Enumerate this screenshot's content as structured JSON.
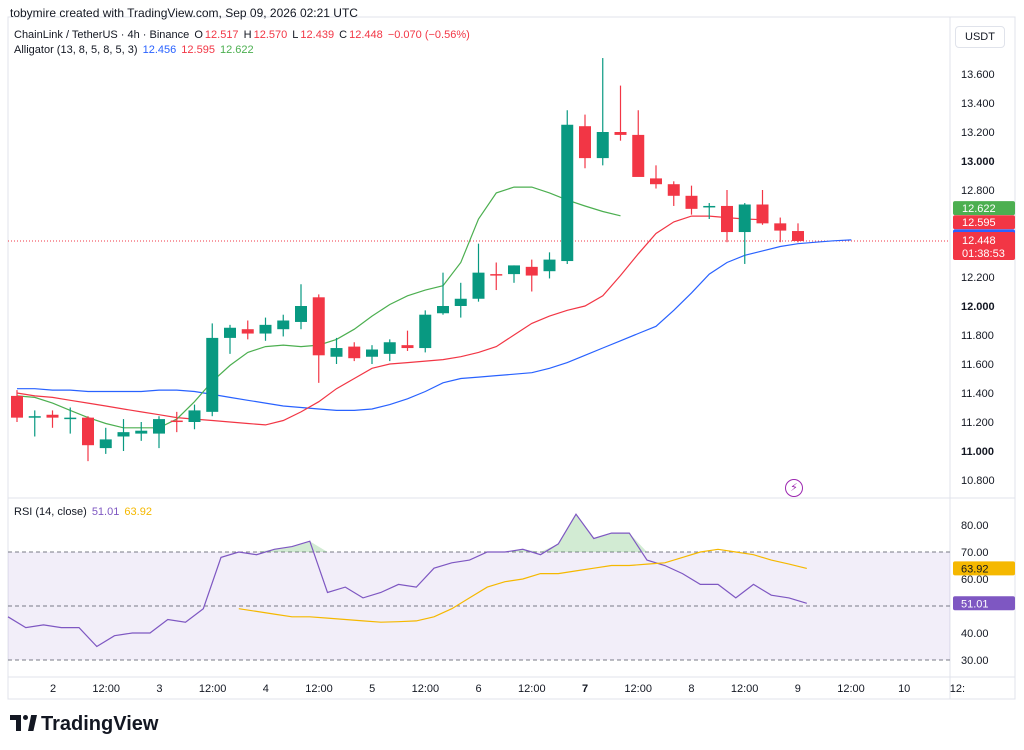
{
  "header": {
    "author_line": "tobymire created with TradingView.com, Sep 09, 2026 02:21 UTC",
    "symbol_line": "ChainLink / TetherUS · 4h · Binance",
    "ohlc": {
      "o_label": "O",
      "o": "12.517",
      "h_label": "H",
      "h": "12.570",
      "l_label": "L",
      "l": "12.439",
      "c_label": "C",
      "c": "12.448",
      "change": "−0.070 (−0.56%)"
    },
    "alligator": {
      "label": "Alligator (13, 8, 5, 8, 5, 3)",
      "jaw": "12.456",
      "teeth": "12.595",
      "lips": "12.622"
    },
    "currency": "USDT"
  },
  "rsi_legend": {
    "label": "RSI (14, close)",
    "rsi": "51.01",
    "ma": "63.92"
  },
  "price_axis": {
    "ticks": [
      "13.600",
      "13.400",
      "13.200",
      "13.000",
      "12.800",
      "12.400",
      "12.200",
      "12.000",
      "11.800",
      "11.600",
      "11.400",
      "11.200",
      "11.000",
      "10.800"
    ],
    "bold_ticks": [
      "13.000",
      "12.000",
      "11.000"
    ],
    "badges": {
      "lips": "12.622",
      "teeth": "12.595",
      "jaw": "12.456",
      "price": "12.448",
      "countdown": "01:38:53"
    }
  },
  "rsi_axis": {
    "ticks": [
      "80.00",
      "70.00",
      "60.00",
      "50.00",
      "40.00",
      "30.00"
    ],
    "badges": {
      "ma": "63.92",
      "rsi": "51.01"
    }
  },
  "time_axis": {
    "labels": [
      "2",
      "12:00",
      "3",
      "12:00",
      "4",
      "12:00",
      "5",
      "12:00",
      "6",
      "12:00",
      "7",
      "12:00",
      "8",
      "12:00",
      "9",
      "12:00",
      "10",
      "12:"
    ],
    "bold_label": "7"
  },
  "colors": {
    "up": "#089981",
    "down": "#f23645",
    "jaw": "#2962ff",
    "teeth": "#f23645",
    "lips": "#4caf50",
    "rsi": "#7e57c2",
    "rsi_ma": "#f5b800"
  },
  "footer": {
    "brand": "TradingView"
  },
  "chart_data": [
    {
      "type": "candlestick",
      "title": "ChainLink / TetherUS · 4h · Binance",
      "ylim": [
        10.75,
        13.75
      ],
      "candles": [
        {
          "o": 11.38,
          "h": 11.42,
          "l": 11.2,
          "c": 11.23
        },
        {
          "o": 11.24,
          "h": 11.28,
          "l": 11.1,
          "c": 11.24
        },
        {
          "o": 11.25,
          "h": 11.28,
          "l": 11.16,
          "c": 11.23
        },
        {
          "o": 11.23,
          "h": 11.3,
          "l": 11.12,
          "c": 11.23
        },
        {
          "o": 11.23,
          "h": 11.24,
          "l": 10.93,
          "c": 11.04
        },
        {
          "o": 11.02,
          "h": 11.16,
          "l": 10.98,
          "c": 11.08
        },
        {
          "o": 11.1,
          "h": 11.22,
          "l": 11.0,
          "c": 11.13
        },
        {
          "o": 11.12,
          "h": 11.2,
          "l": 11.07,
          "c": 11.14
        },
        {
          "o": 11.12,
          "h": 11.24,
          "l": 11.02,
          "c": 11.22
        },
        {
          "o": 11.21,
          "h": 11.27,
          "l": 11.13,
          "c": 11.2
        },
        {
          "o": 11.2,
          "h": 11.32,
          "l": 11.15,
          "c": 11.28
        },
        {
          "o": 11.27,
          "h": 11.88,
          "l": 11.24,
          "c": 11.78
        },
        {
          "o": 11.78,
          "h": 11.87,
          "l": 11.67,
          "c": 11.85
        },
        {
          "o": 11.84,
          "h": 11.9,
          "l": 11.77,
          "c": 11.81
        },
        {
          "o": 11.81,
          "h": 11.92,
          "l": 11.76,
          "c": 11.87
        },
        {
          "o": 11.84,
          "h": 11.94,
          "l": 11.79,
          "c": 11.9
        },
        {
          "o": 11.89,
          "h": 12.15,
          "l": 11.84,
          "c": 12.0
        },
        {
          "o": 12.06,
          "h": 12.08,
          "l": 11.47,
          "c": 11.66
        },
        {
          "o": 11.65,
          "h": 11.78,
          "l": 11.6,
          "c": 11.71
        },
        {
          "o": 11.72,
          "h": 11.75,
          "l": 11.62,
          "c": 11.64
        },
        {
          "o": 11.65,
          "h": 11.73,
          "l": 11.6,
          "c": 11.7
        },
        {
          "o": 11.67,
          "h": 11.77,
          "l": 11.62,
          "c": 11.75
        },
        {
          "o": 11.73,
          "h": 11.83,
          "l": 11.69,
          "c": 11.71
        },
        {
          "o": 11.71,
          "h": 11.97,
          "l": 11.68,
          "c": 11.94
        },
        {
          "o": 11.95,
          "h": 12.23,
          "l": 11.94,
          "c": 12.0
        },
        {
          "o": 12.0,
          "h": 12.16,
          "l": 11.92,
          "c": 12.05
        },
        {
          "o": 12.05,
          "h": 12.43,
          "l": 12.03,
          "c": 12.23
        },
        {
          "o": 12.22,
          "h": 12.3,
          "l": 12.11,
          "c": 12.21
        },
        {
          "o": 12.22,
          "h": 12.28,
          "l": 12.16,
          "c": 12.28
        },
        {
          "o": 12.27,
          "h": 12.32,
          "l": 12.1,
          "c": 12.21
        },
        {
          "o": 12.24,
          "h": 12.37,
          "l": 12.19,
          "c": 12.32
        },
        {
          "o": 12.31,
          "h": 13.35,
          "l": 12.29,
          "c": 13.25
        },
        {
          "o": 13.24,
          "h": 13.32,
          "l": 12.95,
          "c": 13.02
        },
        {
          "o": 13.02,
          "h": 13.71,
          "l": 12.97,
          "c": 13.2
        },
        {
          "o": 13.2,
          "h": 13.52,
          "l": 13.14,
          "c": 13.18
        },
        {
          "o": 13.18,
          "h": 13.35,
          "l": 12.91,
          "c": 12.89
        },
        {
          "o": 12.88,
          "h": 12.97,
          "l": 12.81,
          "c": 12.84
        },
        {
          "o": 12.84,
          "h": 12.86,
          "l": 12.69,
          "c": 12.76
        },
        {
          "o": 12.76,
          "h": 12.83,
          "l": 12.63,
          "c": 12.67
        },
        {
          "o": 12.68,
          "h": 12.71,
          "l": 12.6,
          "c": 12.69
        },
        {
          "o": 12.69,
          "h": 12.8,
          "l": 12.44,
          "c": 12.51
        },
        {
          "o": 12.51,
          "h": 12.71,
          "l": 12.29,
          "c": 12.7
        },
        {
          "o": 12.7,
          "h": 12.8,
          "l": 12.56,
          "c": 12.57
        },
        {
          "o": 12.57,
          "h": 12.61,
          "l": 12.44,
          "c": 12.52
        },
        {
          "o": 12.517,
          "h": 12.57,
          "l": 12.439,
          "c": 12.448
        }
      ],
      "series": [
        {
          "name": "Jaw",
          "values": [
            11.43,
            11.43,
            11.42,
            11.42,
            11.41,
            11.41,
            11.41,
            11.41,
            11.42,
            11.42,
            11.41,
            11.39,
            11.37,
            11.35,
            11.33,
            11.31,
            11.3,
            11.29,
            11.28,
            11.28,
            11.29,
            11.32,
            11.36,
            11.41,
            11.47,
            11.5,
            11.51,
            11.52,
            11.53,
            11.54,
            11.57,
            11.61,
            11.66,
            11.71,
            11.76,
            11.81,
            11.86,
            11.97,
            12.09,
            12.22,
            12.3,
            12.35,
            12.38,
            12.41,
            12.43,
            12.44,
            12.45,
            12.456
          ]
        },
        {
          "name": "Teeth",
          "values": [
            11.4,
            11.38,
            11.37,
            11.35,
            11.33,
            11.31,
            11.29,
            11.27,
            11.25,
            11.23,
            11.22,
            11.21,
            11.2,
            11.19,
            11.18,
            11.21,
            11.27,
            11.34,
            11.43,
            11.5,
            11.57,
            11.6,
            11.61,
            11.62,
            11.63,
            11.65,
            11.68,
            11.72,
            11.8,
            11.88,
            11.93,
            11.97,
            12.0,
            12.07,
            12.21,
            12.36,
            12.5,
            12.58,
            12.62,
            12.62,
            12.61,
            12.6,
            12.595
          ]
        },
        {
          "name": "Lips",
          "values": [
            11.38,
            11.37,
            11.33,
            11.28,
            11.23,
            11.19,
            11.16,
            11.16,
            11.16,
            11.22,
            11.34,
            11.48,
            11.59,
            11.68,
            11.72,
            11.73,
            11.72,
            11.73,
            11.77,
            11.84,
            11.93,
            12.01,
            12.07,
            12.11,
            12.14,
            12.3,
            12.6,
            12.78,
            12.82,
            12.82,
            12.78,
            12.73,
            12.69,
            12.652,
            12.622
          ]
        }
      ]
    },
    {
      "type": "line",
      "title": "RSI (14, close)",
      "ylim": [
        27,
        86
      ],
      "hlines": [
        70,
        50,
        30
      ],
      "series": [
        {
          "name": "RSI",
          "values": [
            46,
            42,
            43,
            42,
            42,
            35,
            39,
            40,
            40,
            45,
            44,
            49,
            68,
            70,
            69,
            71,
            72,
            74,
            55,
            57,
            53,
            55,
            58,
            57,
            64,
            66,
            67,
            70,
            70,
            71,
            69,
            73,
            84,
            75,
            77,
            77,
            67,
            65,
            62,
            58,
            58,
            53,
            58,
            54,
            53,
            51.01
          ]
        },
        {
          "name": "MA",
          "values": [
            49,
            48,
            47,
            46,
            46,
            45.5,
            45,
            44.5,
            44,
            44.2,
            44.5,
            46,
            49,
            53,
            57,
            59,
            60,
            62,
            62,
            63,
            64,
            65,
            65,
            65.5,
            66,
            68,
            70,
            71,
            70,
            69,
            67,
            65.5,
            63.92
          ]
        }
      ]
    }
  ]
}
